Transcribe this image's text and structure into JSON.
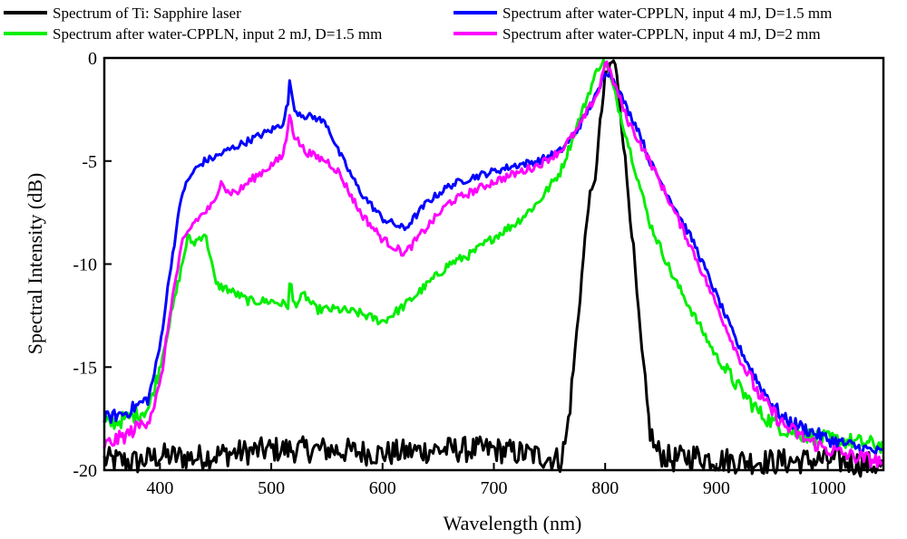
{
  "chart_data": {
    "type": "line",
    "title": "",
    "xlabel": "Wavelength (nm)",
    "ylabel": "Spectral Intensity (dB)",
    "xlim": [
      350,
      1050
    ],
    "ylim": [
      -20,
      0
    ],
    "x_ticks": [
      400,
      500,
      600,
      700,
      800,
      900,
      1000
    ],
    "y_ticks": [
      0,
      -5,
      -10,
      -15,
      -20
    ],
    "x_tick_labels": [
      "400",
      "500",
      "600",
      "700",
      "800",
      "900",
      "1000"
    ],
    "y_tick_labels": [
      "0",
      "-5",
      "-10",
      "-15",
      "-20"
    ],
    "grid": false,
    "legend_position": "top",
    "series": [
      {
        "name": "Spectrum of Ti: Sapphire laser",
        "color": "#000000",
        "x": [
          350,
          380,
          400,
          430,
          460,
          500,
          550,
          600,
          650,
          700,
          740,
          760,
          765,
          770,
          775,
          780,
          785,
          790,
          795,
          800,
          805,
          808,
          812,
          818,
          825,
          830,
          835,
          840,
          845,
          850,
          860,
          880,
          900,
          950,
          1000,
          1050
        ],
        "y": [
          -19.5,
          -19.6,
          -19.3,
          -19.4,
          -19.2,
          -19.0,
          -19.0,
          -19.2,
          -19.0,
          -19.0,
          -19.3,
          -19.5,
          -18.5,
          -16.0,
          -13.0,
          -10.0,
          -7.0,
          -6.3,
          -3.5,
          -1.0,
          -0.3,
          -0.1,
          -1.5,
          -5.0,
          -9.0,
          -12.5,
          -15.5,
          -18.0,
          -19.0,
          -19.2,
          -19.5,
          -19.3,
          -19.5,
          -19.6,
          -19.5,
          -19.8
        ]
      },
      {
        "name": "Spectrum after water-CPPLN, input 4 mJ, D=1.5 mm",
        "color": "#0000FF",
        "x": [
          350,
          370,
          390,
          400,
          410,
          420,
          430,
          440,
          450,
          460,
          480,
          500,
          510,
          515,
          517,
          520,
          530,
          540,
          550,
          560,
          570,
          580,
          600,
          620,
          640,
          660,
          680,
          700,
          720,
          740,
          760,
          775,
          785,
          795,
          800,
          805,
          810,
          820,
          830,
          840,
          860,
          880,
          900,
          920,
          940,
          960,
          980,
          1000,
          1020,
          1050
        ],
        "y": [
          -17.5,
          -17.2,
          -16.5,
          -14.0,
          -10.0,
          -6.5,
          -5.5,
          -5.0,
          -4.8,
          -4.5,
          -4.0,
          -3.5,
          -3.2,
          -2.2,
          -0.9,
          -2.5,
          -2.8,
          -2.9,
          -3.2,
          -4.5,
          -5.5,
          -6.5,
          -7.8,
          -8.3,
          -7.0,
          -6.2,
          -5.8,
          -5.5,
          -5.2,
          -5.0,
          -4.5,
          -3.5,
          -2.5,
          -1.5,
          -0.6,
          -0.8,
          -1.3,
          -2.5,
          -3.5,
          -5.0,
          -7.0,
          -9.0,
          -11.5,
          -14.0,
          -16.0,
          -17.5,
          -18.0,
          -18.5,
          -18.8,
          -19.2
        ]
      },
      {
        "name": "Spectrum after water-CPPLN, input 2 mJ, D=1.5 mm",
        "color": "#00EE00",
        "x": [
          350,
          370,
          390,
          400,
          410,
          420,
          425,
          430,
          440,
          445,
          450,
          460,
          470,
          480,
          500,
          515,
          517,
          520,
          530,
          540,
          560,
          580,
          600,
          620,
          640,
          660,
          680,
          700,
          720,
          740,
          760,
          770,
          780,
          790,
          795,
          800,
          805,
          810,
          820,
          830,
          840,
          860,
          880,
          900,
          920,
          940,
          960,
          980,
          1000,
          1020,
          1050
        ],
        "y": [
          -17.8,
          -17.5,
          -17.0,
          -15.0,
          -12.5,
          -10.0,
          -8.7,
          -9.0,
          -8.5,
          -9.5,
          -11.0,
          -11.2,
          -11.5,
          -11.8,
          -11.8,
          -12.0,
          -10.7,
          -12.0,
          -11.5,
          -12.2,
          -12.2,
          -12.4,
          -12.8,
          -12.0,
          -11.0,
          -10.0,
          -9.5,
          -8.7,
          -8.0,
          -7.0,
          -5.5,
          -4.0,
          -2.5,
          -1.0,
          -0.3,
          -0.2,
          -1.0,
          -2.0,
          -4.0,
          -6.0,
          -8.0,
          -10.5,
          -12.5,
          -14.5,
          -16.0,
          -17.3,
          -18.0,
          -18.3,
          -18.5,
          -18.6,
          -18.8
        ]
      },
      {
        "name": "Spectrum after water-CPPLN, input 4 mJ, D=2 mm",
        "color": "#FF00FF",
        "x": [
          350,
          370,
          390,
          400,
          410,
          420,
          430,
          440,
          450,
          455,
          460,
          470,
          480,
          500,
          510,
          515,
          517,
          520,
          530,
          540,
          550,
          560,
          570,
          580,
          600,
          620,
          640,
          660,
          680,
          700,
          720,
          740,
          760,
          775,
          785,
          795,
          800,
          805,
          810,
          820,
          830,
          840,
          860,
          880,
          900,
          920,
          940,
          960,
          980,
          1000,
          1020,
          1050
        ],
        "y": [
          -18.8,
          -18.3,
          -17.5,
          -16.0,
          -12.0,
          -9.0,
          -8.0,
          -7.5,
          -7.0,
          -5.8,
          -6.5,
          -6.5,
          -6.0,
          -5.2,
          -4.8,
          -3.5,
          -2.5,
          -3.7,
          -4.5,
          -4.8,
          -5.0,
          -5.5,
          -6.5,
          -7.5,
          -8.8,
          -9.5,
          -8.2,
          -7.0,
          -6.5,
          -6.0,
          -5.6,
          -5.2,
          -4.5,
          -3.5,
          -2.5,
          -1.5,
          -0.1,
          -0.8,
          -1.5,
          -3.0,
          -4.0,
          -5.0,
          -7.2,
          -9.5,
          -12.0,
          -14.5,
          -16.5,
          -17.8,
          -18.5,
          -19.0,
          -19.3,
          -19.6
        ]
      }
    ]
  }
}
